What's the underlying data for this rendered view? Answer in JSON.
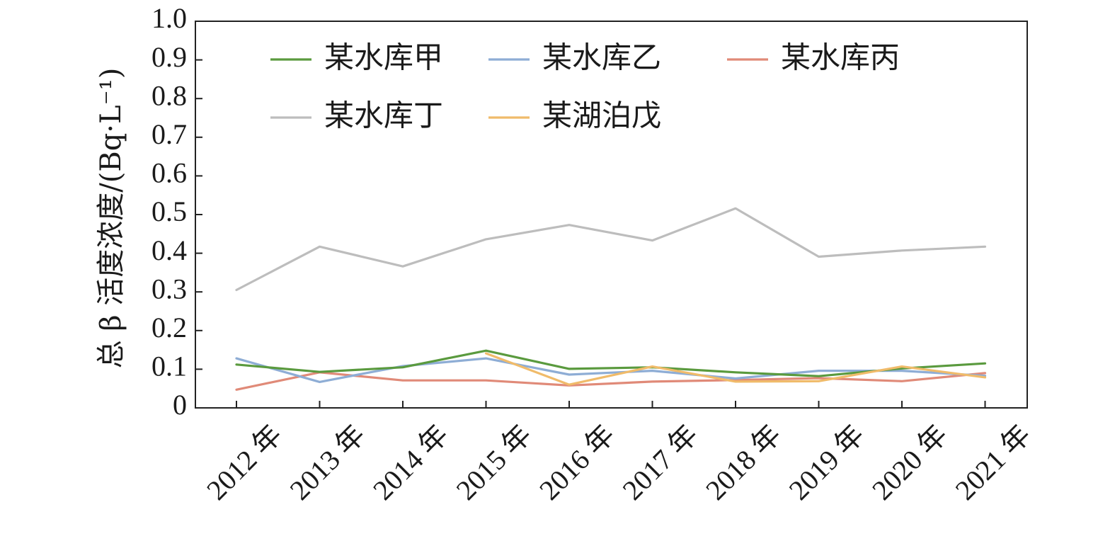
{
  "chart_data": {
    "type": "line",
    "categories": [
      "2012 年",
      "2013 年",
      "2014 年",
      "2015 年",
      "2016 年",
      "2017 年",
      "2018 年",
      "2019 年",
      "2020 年",
      "2021 年"
    ],
    "ylabel": "总 β 活度浓度/(Bq·L⁻¹)",
    "ylim": [
      0,
      1.0
    ],
    "yticks": [
      "0",
      "0.1",
      "0.2",
      "0.3",
      "0.4",
      "0.5",
      "0.6",
      "0.7",
      "0.8",
      "0.9",
      "1.0"
    ],
    "legend_position": "top",
    "grid": false,
    "series": [
      {
        "name": "某水库甲",
        "color": "#5a9a3e",
        "values": [
          0.112,
          0.093,
          0.105,
          0.148,
          0.101,
          0.105,
          0.092,
          0.082,
          0.102,
          0.115
        ]
      },
      {
        "name": "某水库乙",
        "color": "#8eadd5",
        "values": [
          0.128,
          0.067,
          0.108,
          0.128,
          0.086,
          0.096,
          0.076,
          0.096,
          0.096,
          0.083
        ]
      },
      {
        "name": "某水库丙",
        "color": "#e08a78",
        "values": [
          0.047,
          0.092,
          0.071,
          0.071,
          0.058,
          0.068,
          0.072,
          0.077,
          0.069,
          0.09
        ]
      },
      {
        "name": "某水库丁",
        "color": "#bdbdbd",
        "values": [
          0.305,
          0.417,
          0.366,
          0.436,
          0.473,
          0.433,
          0.516,
          0.391,
          0.407,
          0.417
        ]
      },
      {
        "name": "某湖泊戊",
        "color": "#f0bb6a",
        "values": [
          null,
          null,
          null,
          0.141,
          0.06,
          0.107,
          0.068,
          0.069,
          0.107,
          0.079
        ]
      }
    ]
  }
}
